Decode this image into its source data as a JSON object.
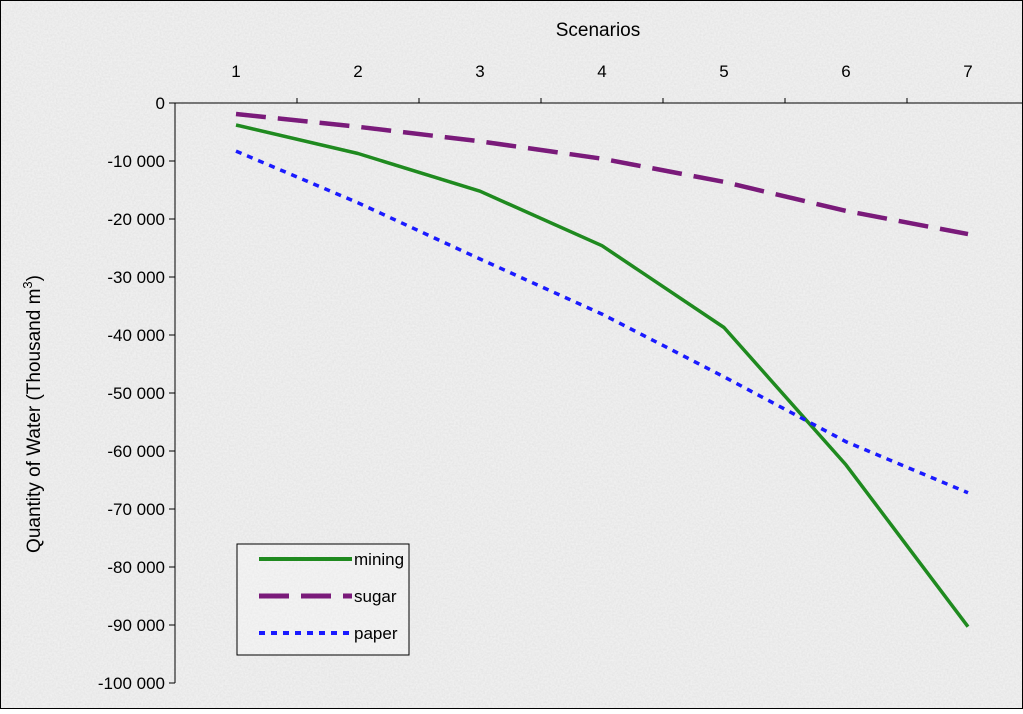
{
  "chart_data": {
    "type": "line",
    "title": "",
    "xlabel": "Scenarios",
    "ylabel_main": "Quantity of Water (Thousand  m",
    "ylabel_sup": "3",
    "ylabel_close": ")",
    "x": [
      1,
      2,
      3,
      4,
      5,
      6,
      7
    ],
    "x_tick_labels": [
      "1",
      "2",
      "3",
      "4",
      "5",
      "6",
      "7"
    ],
    "x_axis_position": "top",
    "ylim": [
      -100000,
      0
    ],
    "y_ticks": [
      0,
      -10000,
      -20000,
      -30000,
      -40000,
      -50000,
      -60000,
      -70000,
      -80000,
      -90000,
      -100000
    ],
    "y_tick_labels": [
      "0",
      "-10 000",
      "-20 000",
      "-30 000",
      "-40 000",
      "-50 000",
      "-60 000",
      "-70 000",
      "-80 000",
      "-90 000",
      "-100 000"
    ],
    "grid": false,
    "legend_position": "bottom-left",
    "series": [
      {
        "name": "mining",
        "color": "#1f8a1f",
        "dash": "solid",
        "values": [
          -3800,
          -8700,
          -15200,
          -24600,
          -38700,
          -62400,
          -90300
        ]
      },
      {
        "name": "sugar",
        "color": "#7a1a7a",
        "dash": "long-dash",
        "values": [
          -1900,
          -4100,
          -6600,
          -9600,
          -13600,
          -18600,
          -22600
        ]
      },
      {
        "name": "paper",
        "color": "#1a1aff",
        "dash": "dotted",
        "values": [
          -8300,
          -17200,
          -26900,
          -36400,
          -47200,
          -58400,
          -67200
        ]
      }
    ]
  }
}
